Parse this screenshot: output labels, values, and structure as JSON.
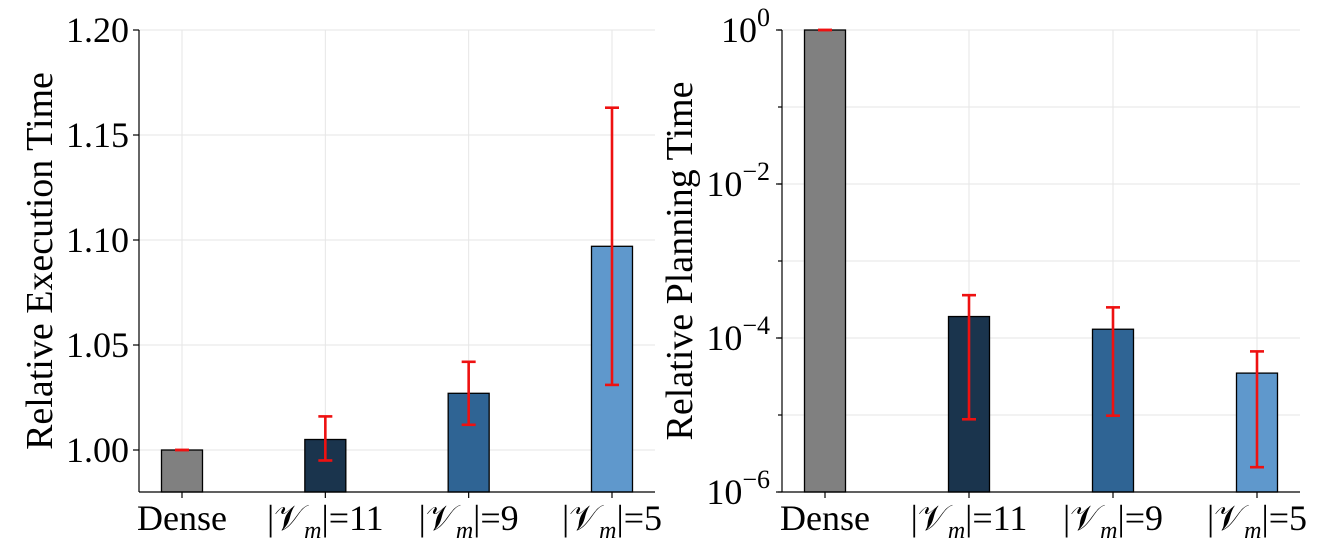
{
  "chart_data": [
    {
      "type": "bar",
      "scale": "linear",
      "categories": [
        "Dense",
        "|𝒱m|=11",
        "|𝒱m|=9",
        "|𝒱m|=5"
      ],
      "values": [
        1.0,
        1.005,
        1.027,
        1.097
      ],
      "error_low": [
        1.0,
        0.995,
        1.012,
        1.031
      ],
      "error_high": [
        1.0,
        1.016,
        1.042,
        1.163
      ],
      "colors": [
        "#808080",
        "#1a344d",
        "#2f6494",
        "#5f98cc"
      ],
      "error_color": "#ee1111",
      "ylabel": "Relative Execution Time",
      "xlabel": "",
      "ylim": [
        0.98,
        1.2
      ],
      "yticks": [
        1.0,
        1.05,
        1.1,
        1.15,
        1.2
      ],
      "ytick_labels": [
        "1.00",
        "1.05",
        "1.10",
        "1.15",
        "1.20"
      ],
      "grid": true
    },
    {
      "type": "bar",
      "scale": "log",
      "categories": [
        "Dense",
        "|𝒱m|=11",
        "|𝒱m|=9",
        "|𝒱m|=5"
      ],
      "values": [
        1.0,
        0.00019,
        0.00013,
        3.5e-05
      ],
      "error_low": [
        1.0,
        8.8e-06,
        9.8e-06,
        2.1e-06
      ],
      "error_high": [
        1.0,
        0.00036,
        0.00025,
        6.7e-05
      ],
      "colors": [
        "#808080",
        "#1a344d",
        "#2f6494",
        "#5f98cc"
      ],
      "error_color": "#ee1111",
      "ylabel": "Relative Planning Time",
      "xlabel": "",
      "ylim": [
        1e-06,
        1
      ],
      "yticks": [
        1e-06,
        0.0001,
        0.01,
        1
      ],
      "ytick_labels": [
        {
          "base": "10",
          "exp": "−6"
        },
        {
          "base": "10",
          "exp": "−4"
        },
        {
          "base": "10",
          "exp": "−2"
        },
        {
          "base": "10",
          "exp": "0"
        }
      ],
      "grid": true
    }
  ]
}
